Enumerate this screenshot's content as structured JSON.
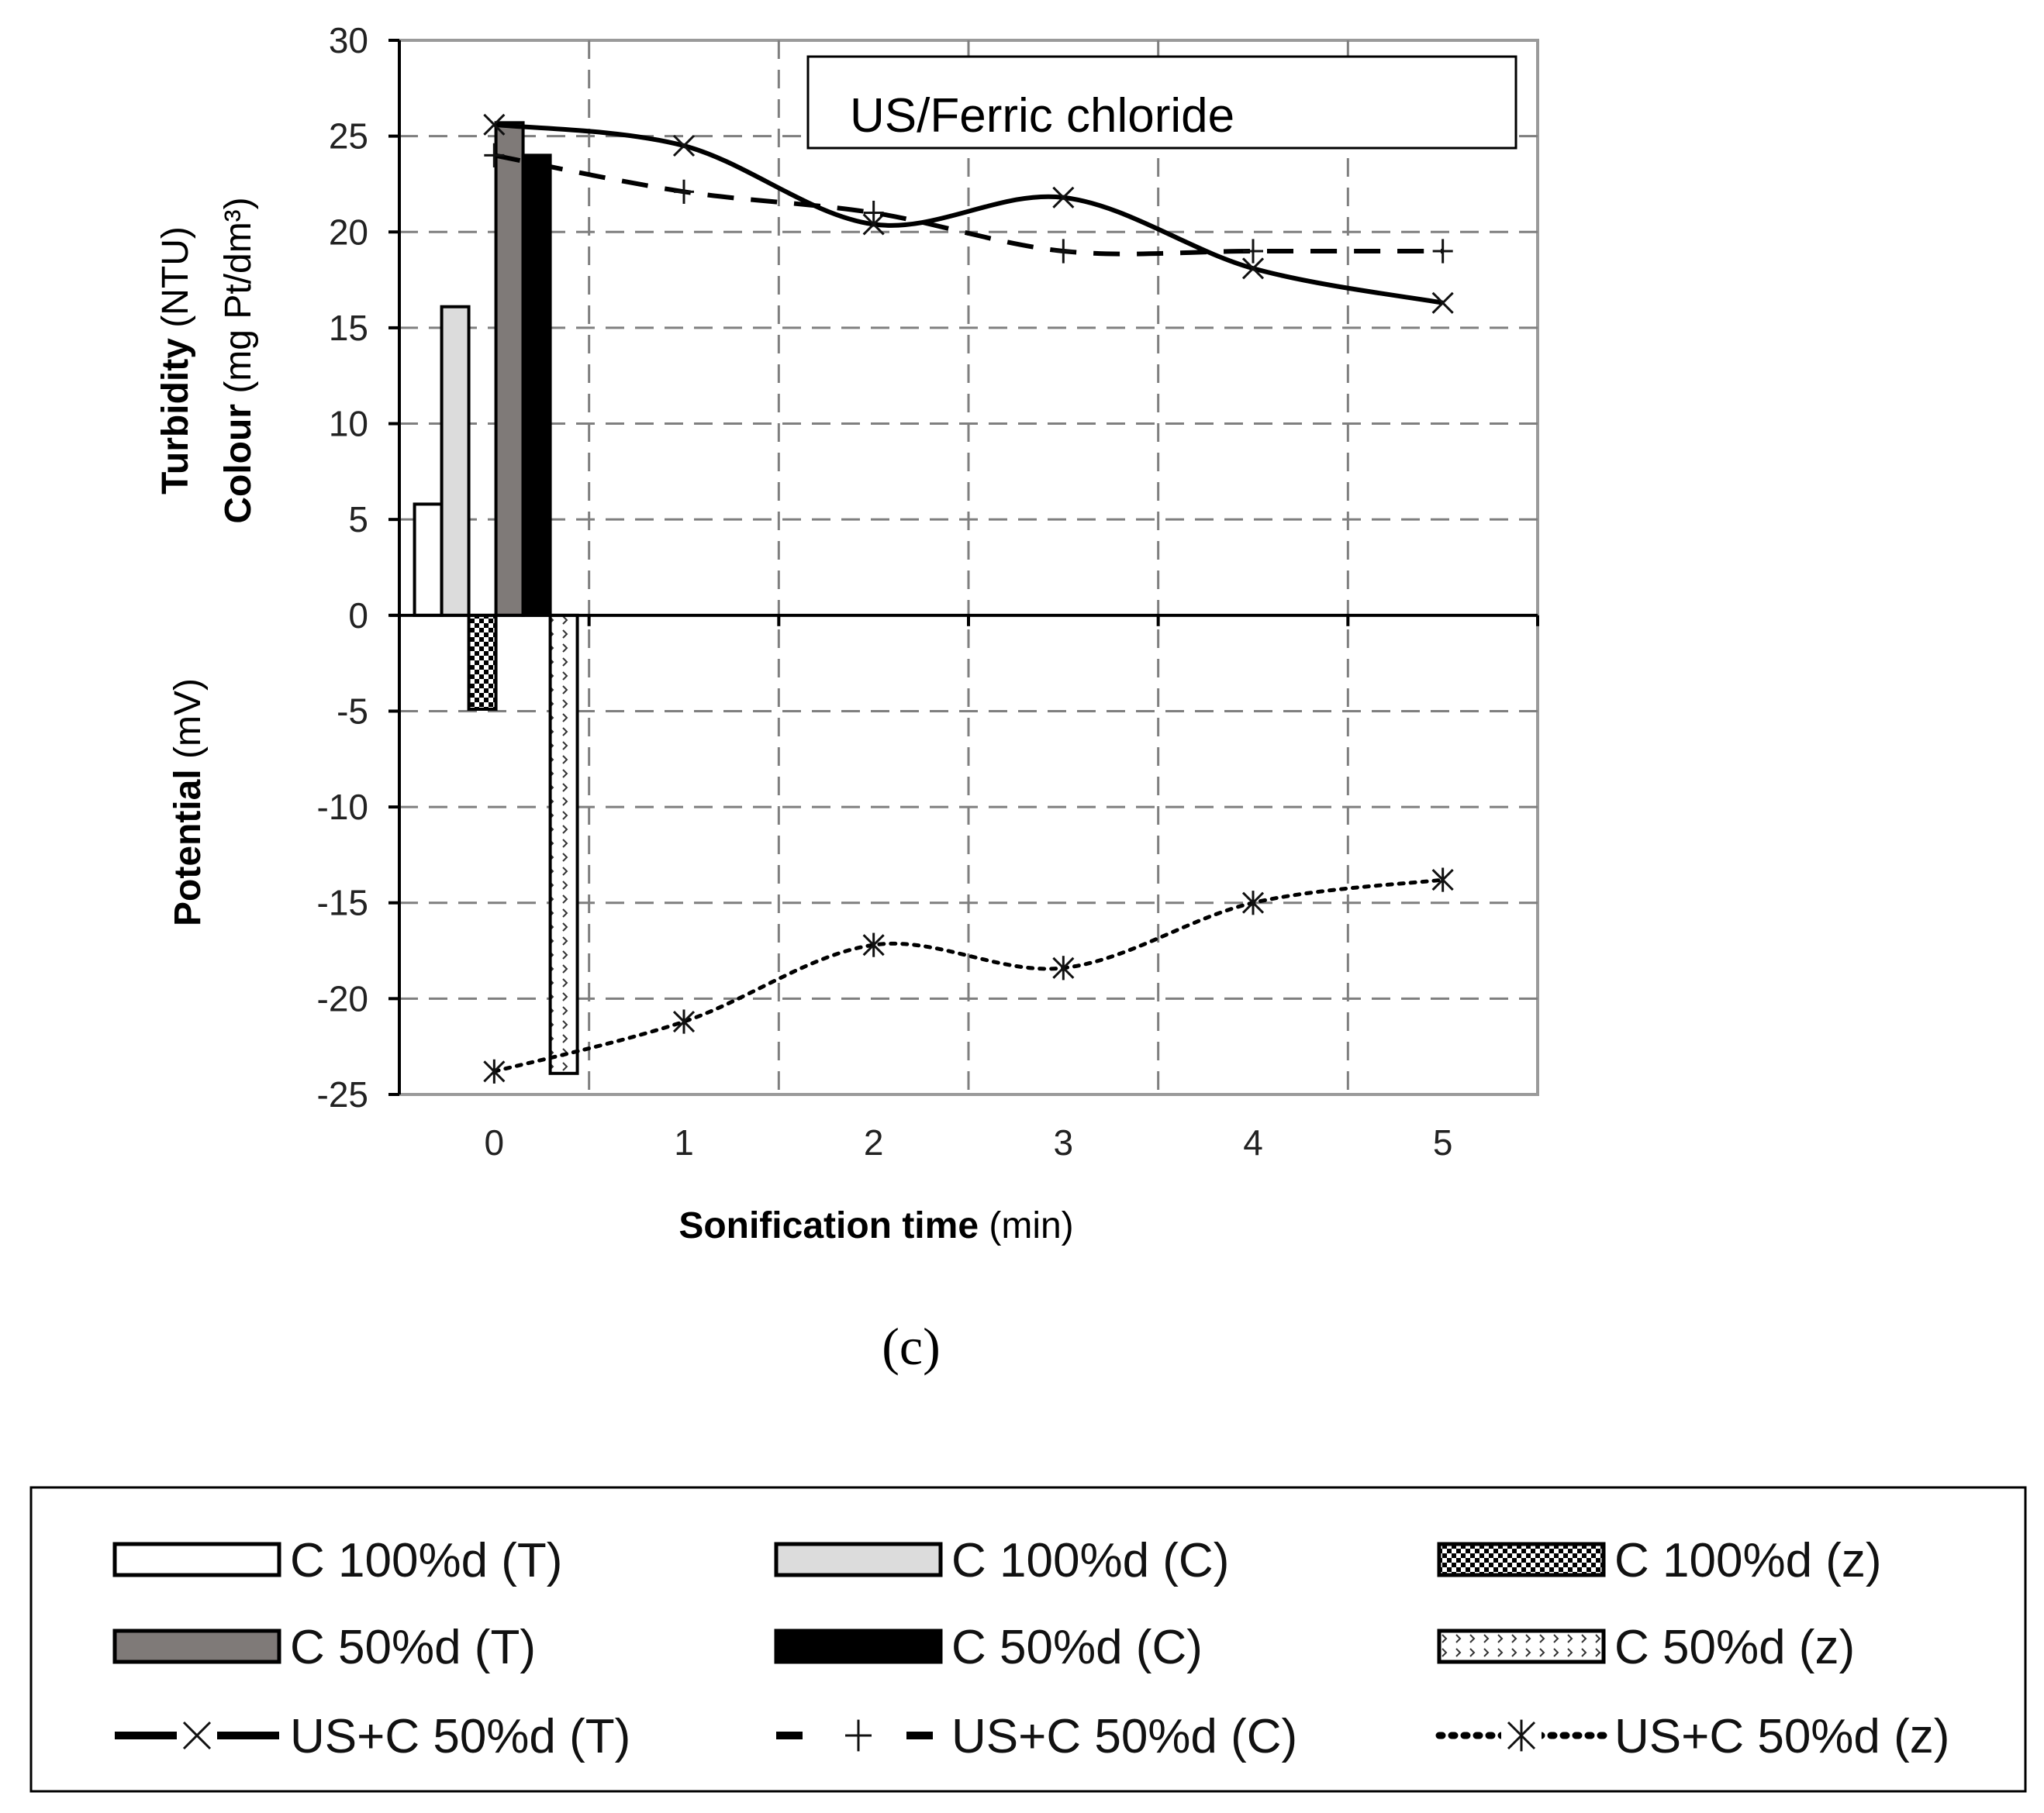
{
  "figure": {
    "panel_label": "(c)",
    "inset_title": "US/Ferric chloride"
  },
  "colors": {
    "bar_T100": "#ffffff",
    "bar_C100": "#dcdcdc",
    "bar_T50": "#7f7a78",
    "bar_C50": "#000000",
    "line": "#000000",
    "grid": "#7f7f7f",
    "frame": "#9a9a9a"
  },
  "chart_data": {
    "type": "bar+line",
    "title": "US/Ferric chloride",
    "xlabel": {
      "bold": "Sonification  time",
      "normal": " (min)"
    },
    "ylabel_top": [
      {
        "bold": "Turbidity",
        "normal": "  (NTU)"
      },
      {
        "bold": "Colour",
        "normal": " (mg Pt/dm³)"
      }
    ],
    "ylabel_bottom": {
      "bold": "Potential",
      "normal": "  (mV)"
    },
    "xlim": [
      -0.5,
      5.5
    ],
    "ylim": [
      -25,
      30
    ],
    "x_ticks": [
      "0",
      "1",
      "2",
      "3",
      "4",
      "5"
    ],
    "y_ticks": [
      "30",
      "25",
      "20",
      "15",
      "10",
      "5",
      "0",
      "-5",
      "-10",
      "-15",
      "-20",
      "-25"
    ],
    "x_gridlines": [
      0.5,
      1.5,
      2.5,
      3.5,
      4.5
    ],
    "y_gridlines": [
      25,
      20,
      15,
      10,
      5,
      -5,
      -10,
      -15,
      -20
    ],
    "bars": [
      {
        "name": "C 100%d (T)",
        "value": 5.8,
        "pattern": "white"
      },
      {
        "name": "C 100%d (C)",
        "value": 16.1,
        "pattern": "lightgray"
      },
      {
        "name": "C 100%d (z)",
        "value": -4.9,
        "pattern": "checker"
      },
      {
        "name": "C 50%d (T)",
        "value": 25.7,
        "pattern": "darkgray"
      },
      {
        "name": "C 50%d (C)",
        "value": 24.0,
        "pattern": "black"
      },
      {
        "name": "C 50%d (z)",
        "value": -23.9,
        "pattern": "chevron"
      }
    ],
    "series": [
      {
        "name": "US+C 50%d (T)",
        "style": "solid",
        "marker": "x",
        "x": [
          0,
          1,
          2,
          3,
          4,
          5
        ],
        "values": [
          25.6,
          24.5,
          20.4,
          21.8,
          18.1,
          16.3
        ]
      },
      {
        "name": "US+C 50%d (C)",
        "style": "dashed",
        "marker": "plus",
        "x": [
          0,
          1,
          2,
          3,
          4,
          5
        ],
        "values": [
          24.0,
          22.1,
          21.0,
          19.0,
          19.0,
          19.0
        ]
      },
      {
        "name": "US+C 50%d (z)",
        "style": "dotted",
        "marker": "asterisk",
        "x": [
          0,
          1,
          2,
          3,
          4,
          5
        ],
        "values": [
          -23.8,
          -21.2,
          -17.2,
          -18.4,
          -15.0,
          -13.8
        ]
      }
    ]
  },
  "legend": {
    "items": [
      {
        "label": "C 100%d (T)",
        "kind": "bar",
        "pattern": "white"
      },
      {
        "label": "C 100%d (C)",
        "kind": "bar",
        "pattern": "lightgray"
      },
      {
        "label": "C 100%d (z)",
        "kind": "bar",
        "pattern": "checker"
      },
      {
        "label": "C 50%d (T)",
        "kind": "bar",
        "pattern": "darkgray"
      },
      {
        "label": "C 50%d (C)",
        "kind": "bar",
        "pattern": "black"
      },
      {
        "label": "C 50%d (z)",
        "kind": "bar",
        "pattern": "chevron"
      },
      {
        "label": "US+C 50%d (T)",
        "kind": "line",
        "style": "solid",
        "marker": "x"
      },
      {
        "label": "US+C 50%d (C)",
        "kind": "line",
        "style": "dashed",
        "marker": "plus"
      },
      {
        "label": "US+C 50%d (z)",
        "kind": "line",
        "style": "dotted",
        "marker": "asterisk"
      }
    ]
  }
}
